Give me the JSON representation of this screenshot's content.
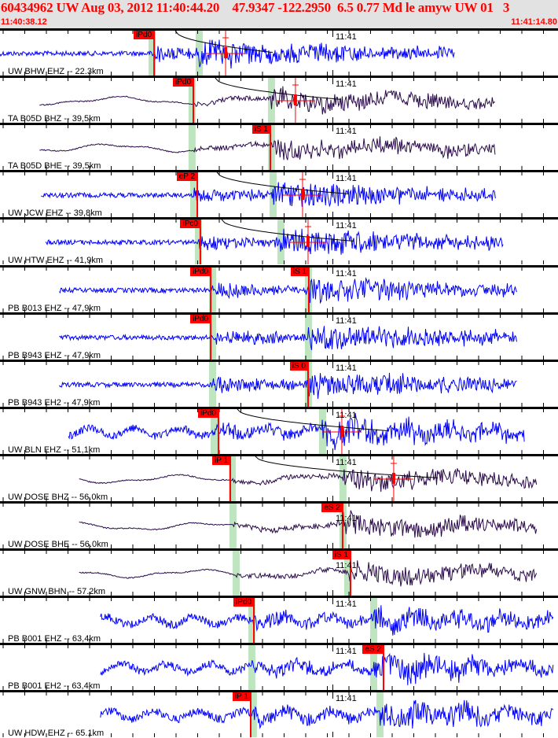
{
  "header": {
    "title": "60434962 UW Aug 03, 2012 11:40:44.20    47.9347 -122.2950  6.5 0.77 Md le amyw UW 01   3",
    "window_start": "11:40:38.12",
    "window_end": "11:41:14.80"
  },
  "minute_label": "11:41",
  "colors": {
    "broadband": "#2a0a4a",
    "short_period": "#0000ff",
    "pick": "#ff0000",
    "predicted": "#bfe5c0"
  },
  "time_axis": {
    "window_seconds": 36.68,
    "minute_mark_s": 21.88
  },
  "panels": [
    {
      "label": "UW BHW EHZ -- 22.3km",
      "type": "short_period",
      "picks": [
        {
          "label": "iPd0",
          "t": 10.13
        }
      ],
      "predicted": [
        9.97,
        13.07
      ],
      "coda_t": 14.83,
      "trace": [
        0,
        29.9
      ]
    },
    {
      "label": "TA B05D BHZ -- 39,5km",
      "type": "broadband",
      "picks": [
        {
          "label": "iPd0",
          "t": 12.71
        }
      ],
      "predicted": [
        12.6,
        17.82
      ],
      "coda_t": 19.42,
      "trace": [
        2.6,
        32.6
      ]
    },
    {
      "label": "TA B05D BHE -- 39,5km",
      "type": "broadband",
      "picks": [
        {
          "label": "iS 1",
          "t": 17.77
        }
      ],
      "predicted": [
        12.6,
        17.82
      ],
      "trace": [
        2.6,
        32.6
      ]
    },
    {
      "label": "UW JCW EHZ -- 39,8km",
      "type": "short_period",
      "picks": [
        {
          "label": "eP 2",
          "t": 12.97
        }
      ],
      "predicted": [
        12.71,
        17.93
      ],
      "coda_t": 19.89,
      "trace": [
        2.7,
        32.6
      ]
    },
    {
      "label": "UW HTW EHZ -- 41,9km",
      "type": "short_period",
      "picks": [
        {
          "label": "iPc0",
          "t": 13.17
        }
      ],
      "predicted": [
        13.02,
        18.44
      ],
      "coda_t": 20.25,
      "trace": [
        3.0,
        33.1
      ]
    },
    {
      "label": "PB B013 EHZ -- 47,9km",
      "type": "short_period",
      "picks": [
        {
          "label": "iPd0",
          "t": 13.85
        },
        {
          "label": "iS 1",
          "t": 20.3
        }
      ],
      "predicted": [
        13.95,
        20.25
      ],
      "trace": [
        3.9,
        34.0
      ]
    },
    {
      "label": "PB B943 EHZ -- 47,9km",
      "type": "short_period",
      "picks": [
        {
          "label": "iPd0",
          "t": 13.85
        }
      ],
      "predicted": [
        13.95,
        20.25
      ],
      "trace": [
        3.9,
        34.0
      ]
    },
    {
      "label": "PB B943 EH2 -- 47,9km",
      "type": "short_period",
      "picks": [
        {
          "label": "iS 0",
          "t": 20.25
        }
      ],
      "predicted": [
        13.95,
        20.25
      ],
      "trace": [
        3.9,
        34.0
      ]
    },
    {
      "label": "UW BLN EHZ -- 51,1km",
      "type": "short_period",
      "picks": [
        {
          "label": "iPd0",
          "t": 14.36
        }
      ],
      "predicted": [
        14.05,
        21.18
      ],
      "coda_t": 22.47,
      "trace": [
        4.5,
        34.5
      ]
    },
    {
      "label": "UW DOSE BHZ -- 56.0km",
      "type": "broadband",
      "picks": [
        {
          "label": "iP 1",
          "t": 15.14
        }
      ],
      "predicted": [
        15.24,
        22.52
      ],
      "coda_t": 25.88,
      "trace": [
        5.2,
        35.3
      ]
    },
    {
      "label": "UW DOSE BHE -- 56.0km",
      "type": "broadband",
      "picks": [
        {
          "label": "eS 2",
          "t": 22.52
        }
      ],
      "predicted": [
        15.29,
        22.52
      ],
      "trace": [
        5.2,
        35.3
      ]
    },
    {
      "label": "UW GNW BHN -- 57.2km",
      "type": "broadband",
      "picks": [
        {
          "label": "iS 1",
          "t": 23.04
        }
      ],
      "predicted": [
        15.5,
        22.83
      ],
      "trace": [
        5.2,
        35.3
      ]
    },
    {
      "label": "PB B001 EHZ -- 63,4km",
      "type": "short_period",
      "picks": [
        {
          "label": "iPd0",
          "t": 16.69
        }
      ],
      "predicted": [
        16.53,
        24.54
      ],
      "trace": [
        6.6,
        36.4
      ]
    },
    {
      "label": "PB B001 EH2 -- 63,4km",
      "type": "short_period",
      "picks": [
        {
          "label": "eS 2",
          "t": 25.21
        }
      ],
      "predicted": [
        16.53,
        24.54
      ],
      "trace": [
        6.6,
        36.4
      ]
    },
    {
      "label": "UW HDW EHZ -- 65.1km",
      "type": "short_period",
      "picks": [
        {
          "label": "iP 1",
          "t": 16.48
        }
      ],
      "predicted": [
        16.63,
        24.95
      ],
      "trace": [
        6.6,
        36.4
      ]
    }
  ]
}
